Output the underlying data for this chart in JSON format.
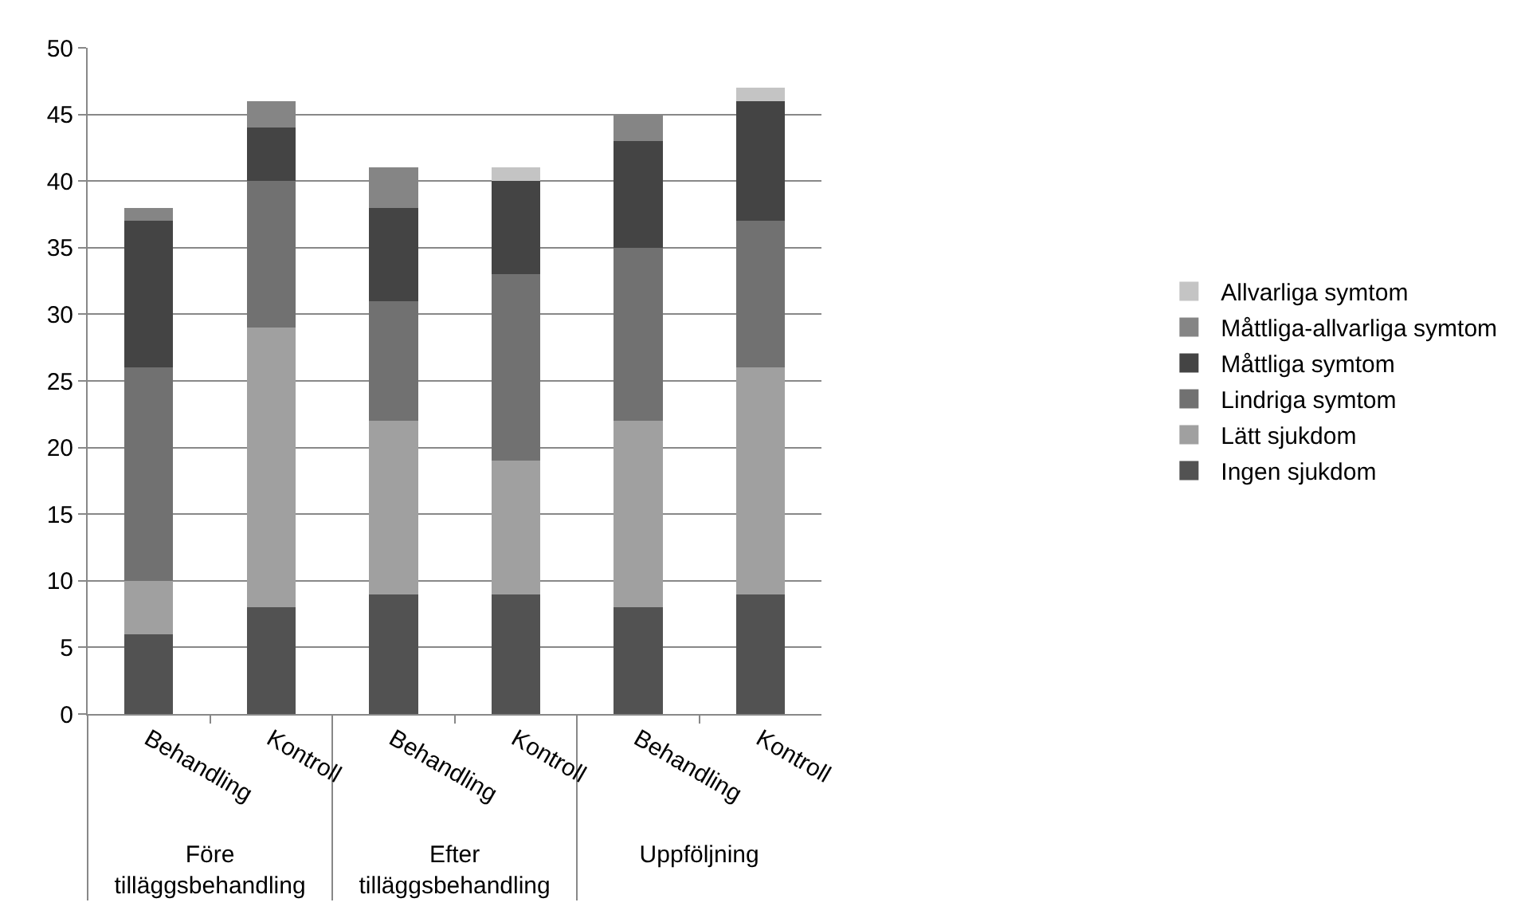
{
  "chart_data": {
    "type": "bar",
    "stacked": true,
    "categories": [
      "Behandling",
      "Kontroll",
      "Behandling",
      "Kontroll",
      "Behandling",
      "Kontroll"
    ],
    "annotations": [
      "Före tilläggsbehandling",
      "Efter tilläggsbehandling",
      "Uppföljning"
    ],
    "series": [
      {
        "name": "Ingen sjukdom",
        "color": "#525252",
        "values": [
          6,
          8,
          9,
          9,
          8,
          9
        ]
      },
      {
        "name": "Lätt sjukdom",
        "color": "#a0a0a0",
        "values": [
          4,
          21,
          13,
          10,
          14,
          17
        ]
      },
      {
        "name": "Lindriga symtom",
        "color": "#717171",
        "values": [
          16,
          11,
          9,
          14,
          13,
          11
        ]
      },
      {
        "name": "Måttliga symtom",
        "color": "#444444",
        "values": [
          11,
          4,
          7,
          7,
          8,
          9
        ]
      },
      {
        "name": "Måttliga-allvarliga symtom",
        "color": "#858585",
        "values": [
          1,
          2,
          3,
          0,
          2,
          0
        ]
      },
      {
        "name": "Allvarliga symtom",
        "color": "#c4c4c4",
        "values": [
          0,
          0,
          0,
          1,
          0,
          1
        ]
      }
    ],
    "ylim": [
      0,
      50
    ],
    "yticks": [
      0,
      5,
      10,
      15,
      20,
      25,
      30,
      35,
      40,
      45,
      50
    ],
    "grid": "y",
    "legend": "right"
  }
}
